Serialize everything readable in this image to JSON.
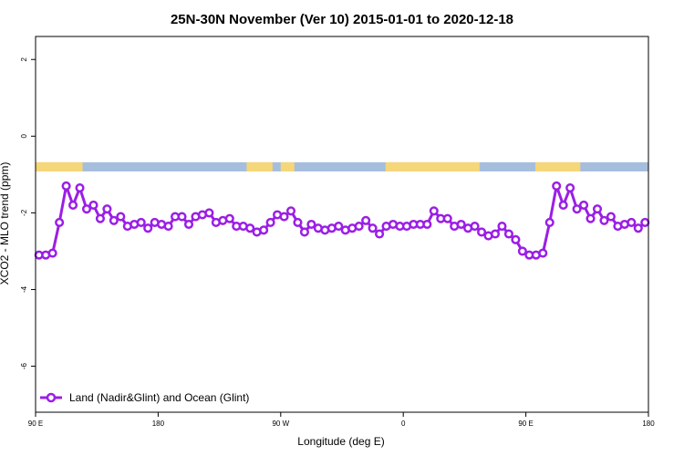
{
  "chart_data": {
    "type": "line",
    "title": "25N-30N November (Ver 10)   2015-01-01 to 2020-12-18",
    "xlabel": "Longitude (deg E)",
    "ylabel": "XCO2 - MLO trend (ppm)",
    "xlim": [
      90,
      540
    ],
    "ylim": [
      -7.2,
      2.6
    ],
    "x_ticks": [
      {
        "value": 90,
        "label": "90 E"
      },
      {
        "value": 180,
        "label": "180"
      },
      {
        "value": 270,
        "label": "90 W"
      },
      {
        "value": 360,
        "label": "0"
      },
      {
        "value": 450,
        "label": "90 E"
      },
      {
        "value": 540,
        "label": "180"
      }
    ],
    "y_ticks": [
      {
        "value": 2,
        "label": "2"
      },
      {
        "value": 0,
        "label": "0"
      },
      {
        "value": -2,
        "label": "-2"
      },
      {
        "value": -4,
        "label": "-4"
      },
      {
        "value": -6,
        "label": "-6"
      }
    ],
    "legend": {
      "position": "bottom-left",
      "label": "Land (Nadir&Glint) and Ocean (Glint)"
    },
    "colors": {
      "series": "#9b1ee6",
      "land": "#f5d77a",
      "ocean": "#a6bedd"
    },
    "land_ocean_strip": {
      "y_range": [
        -0.92,
        -0.68
      ],
      "land_segments": [
        [
          90,
          124.5
        ],
        [
          245,
          264
        ],
        [
          270,
          280
        ],
        [
          347,
          416
        ],
        [
          457,
          490
        ]
      ]
    },
    "series": [
      {
        "name": "Land (Nadir&Glint) and Ocean (Glint)",
        "x": [
          92.5,
          97.5,
          102.5,
          107.5,
          112.5,
          117.5,
          122.5,
          127.5,
          132.5,
          137.5,
          142.5,
          147.5,
          152.5,
          157.5,
          162.5,
          167.5,
          172.5,
          177.5,
          182.5,
          187.5,
          192.5,
          197.5,
          202.5,
          207.5,
          212.5,
          217.5,
          222.5,
          227.5,
          232.5,
          237.5,
          242.5,
          247.5,
          252.5,
          257.5,
          262.5,
          267.5,
          272.5,
          277.5,
          282.5,
          287.5,
          292.5,
          297.5,
          302.5,
          307.5,
          312.5,
          317.5,
          322.5,
          327.5,
          332.5,
          337.5,
          342.5,
          347.5,
          352.5,
          357.5,
          362.5,
          367.5,
          372.5,
          377.5,
          382.5,
          387.5,
          392.5,
          397.5,
          402.5,
          407.5,
          412.5,
          417.5,
          422.5,
          427.5,
          432.5,
          437.5,
          442.5,
          447.5,
          452.5,
          457.5,
          462.5,
          467.5,
          472.5,
          477.5,
          482.5,
          487.5,
          492.5,
          497.5,
          502.5,
          507.5,
          512.5,
          517.5,
          522.5,
          527.5,
          532.5,
          537.5
        ],
        "values": [
          -3.1,
          -3.1,
          -3.05,
          -2.25,
          -1.3,
          -1.8,
          -1.35,
          -1.9,
          -1.8,
          -2.15,
          -1.9,
          -2.2,
          -2.1,
          -2.35,
          -2.3,
          -2.25,
          -2.4,
          -2.25,
          -2.3,
          -2.35,
          -2.1,
          -2.1,
          -2.3,
          -2.1,
          -2.05,
          -2.0,
          -2.25,
          -2.2,
          -2.15,
          -2.35,
          -2.35,
          -2.4,
          -2.5,
          -2.45,
          -2.25,
          -2.05,
          -2.1,
          -1.95,
          -2.25,
          -2.5,
          -2.3,
          -2.4,
          -2.45,
          -2.4,
          -2.35,
          -2.45,
          -2.4,
          -2.35,
          -2.2,
          -2.4,
          -2.55,
          -2.35,
          -2.3,
          -2.35,
          -2.35,
          -2.3,
          -2.3,
          -2.3,
          -1.95,
          -2.15,
          -2.15,
          -2.35,
          -2.3,
          -2.4,
          -2.35,
          -2.5,
          -2.6,
          -2.55,
          -2.35,
          -2.55,
          -2.7,
          -3.0,
          -3.1,
          -3.1,
          -3.05,
          -2.25,
          -1.3,
          -1.8,
          -1.35,
          -1.9,
          -1.8,
          -2.15,
          -1.9,
          -2.2,
          -2.1,
          -2.35,
          -2.3,
          -2.25,
          -2.4,
          -2.25
        ]
      }
    ]
  }
}
